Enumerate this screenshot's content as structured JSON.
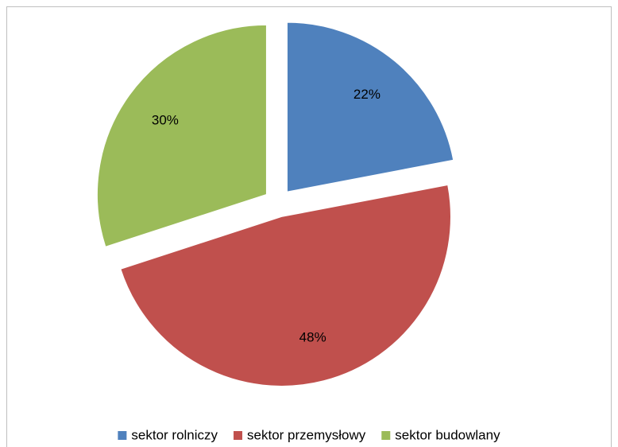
{
  "chart_data": {
    "type": "pie",
    "categories": [
      "sektor rolniczy",
      "sektor przemysłowy",
      "sektor budowlany"
    ],
    "values": [
      22,
      48,
      30
    ],
    "value_labels": [
      "22%",
      "48%",
      "30%"
    ],
    "colors": [
      "#4f81bd",
      "#c0504d",
      "#9bbb59"
    ],
    "legend": "bottom"
  }
}
